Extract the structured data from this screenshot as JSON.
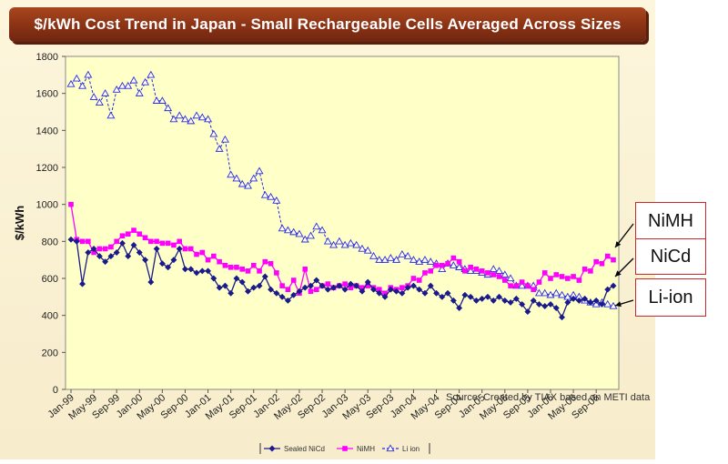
{
  "colors": {
    "nicd": "#1a1a8c",
    "nimh": "#ff00ff",
    "liion": "#2b2bd8",
    "plot_bg": "#ffffc8",
    "page_bg": "#fbf3d6",
    "title_bg": "#8a3214",
    "callout_border": "#cc2a2a"
  },
  "callouts": {
    "nimh": "NiMH",
    "nicd": "NiCd",
    "liion": "Li-ion"
  },
  "source_note": "Source: Created by TIAX based on METI data",
  "chart_data": {
    "type": "line",
    "title": "$/kWh Cost Trend in Japan - Small Rechargeable Cells Averaged Across Sizes",
    "ylabel": "$/kWh",
    "xlabel": "",
    "ylim": [
      0,
      1800
    ],
    "yticks": [
      0,
      200,
      400,
      600,
      800,
      1000,
      1200,
      1400,
      1600,
      1800
    ],
    "x_tick_labels": [
      "Jan-99",
      "May-99",
      "Sep-99",
      "Jan-00",
      "May-00",
      "Sep-00",
      "Jan-01",
      "May-01",
      "Sep-01",
      "Jan-02",
      "May-02",
      "Sep-02",
      "Jan-03",
      "May-03",
      "Sep-03",
      "Jan-04",
      "May-04",
      "Sep-04",
      "Jan-05",
      "May-05",
      "Sep-05",
      "Jan-06",
      "May-06",
      "Sep-06"
    ],
    "x_start": "Jan-99",
    "months": 96,
    "legend_position": "bottom",
    "grid": false,
    "series": [
      {
        "name": "Sealed NiCd",
        "key": "nicd",
        "marker": "diamond",
        "values": [
          810,
          800,
          570,
          740,
          760,
          720,
          690,
          720,
          740,
          790,
          720,
          780,
          740,
          700,
          580,
          760,
          680,
          660,
          700,
          760,
          650,
          650,
          630,
          640,
          640,
          600,
          550,
          560,
          520,
          600,
          580,
          530,
          550,
          560,
          610,
          540,
          520,
          500,
          480,
          510,
          530,
          550,
          560,
          590,
          560,
          540,
          550,
          560,
          540,
          570,
          560,
          530,
          580,
          540,
          520,
          500,
          540,
          530,
          520,
          550,
          560,
          540,
          520,
          560,
          520,
          500,
          520,
          480,
          440,
          510,
          500,
          480,
          490,
          500,
          480,
          500,
          480,
          470,
          490,
          460,
          420,
          480,
          460,
          450,
          460,
          440,
          390,
          470,
          490,
          480,
          490,
          470,
          480,
          460,
          540,
          560
        ]
      },
      {
        "name": "NiMH",
        "key": "nimh",
        "marker": "square",
        "values": [
          1000,
          810,
          800,
          800,
          740,
          760,
          760,
          770,
          800,
          830,
          840,
          860,
          840,
          820,
          800,
          800,
          790,
          790,
          780,
          800,
          760,
          760,
          730,
          740,
          700,
          720,
          690,
          670,
          660,
          660,
          650,
          640,
          670,
          640,
          690,
          680,
          630,
          560,
          540,
          590,
          520,
          650,
          530,
          540,
          560,
          570,
          550,
          560,
          570,
          550,
          560,
          550,
          560,
          550,
          540,
          520,
          550,
          540,
          550,
          560,
          600,
          590,
          630,
          640,
          670,
          670,
          680,
          710,
          690,
          640,
          660,
          650,
          640,
          630,
          620,
          610,
          590,
          560,
          560,
          580,
          560,
          540,
          580,
          630,
          600,
          620,
          610,
          600,
          610,
          590,
          650,
          640,
          690,
          680,
          720,
          700
        ]
      },
      {
        "name": "Li ion",
        "key": "liion",
        "marker": "triangle",
        "values": [
          1650,
          1680,
          1640,
          1700,
          1580,
          1550,
          1600,
          1480,
          1620,
          1640,
          1640,
          1670,
          1600,
          1660,
          1700,
          1560,
          1560,
          1520,
          1460,
          1480,
          1460,
          1450,
          1480,
          1470,
          1460,
          1380,
          1300,
          1350,
          1160,
          1140,
          1110,
          1100,
          1140,
          1180,
          1050,
          1040,
          1020,
          870,
          860,
          850,
          840,
          810,
          830,
          880,
          860,
          800,
          780,
          800,
          780,
          790,
          780,
          760,
          750,
          720,
          700,
          700,
          710,
          700,
          730,
          720,
          700,
          690,
          700,
          690,
          680,
          650,
          680,
          670,
          660,
          650,
          640,
          640,
          630,
          620,
          650,
          640,
          620,
          600,
          560,
          560,
          560,
          560,
          520,
          520,
          510,
          520,
          510,
          500,
          510,
          500,
          480,
          470,
          460,
          470,
          460,
          450
        ]
      }
    ]
  }
}
